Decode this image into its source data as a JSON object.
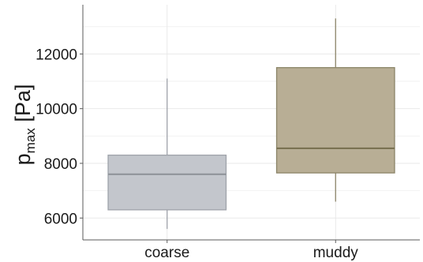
{
  "chart_data": {
    "type": "box",
    "title": "",
    "xlabel": "",
    "ylabel": {
      "main": "p",
      "subscript": "max",
      "unit": " [Pa]"
    },
    "ylim": [
      5200,
      13800
    ],
    "yticks": [
      6000,
      8000,
      10000,
      12000
    ],
    "ytick_labels": [
      "6000",
      "8000",
      "10000",
      "12000"
    ],
    "grid": true,
    "categories": [
      "coarse",
      "muddy"
    ],
    "boxes": [
      {
        "category": "coarse",
        "whisker_low": 5600,
        "q1": 6300,
        "median": 7600,
        "q3": 8300,
        "whisker_high": 11100,
        "fill": "#c3c6cc",
        "stroke": "#9fa3aa"
      },
      {
        "category": "muddy",
        "whisker_low": 6600,
        "q1": 7650,
        "median": 8550,
        "q3": 11500,
        "whisker_high": 13300,
        "fill": "#b8ae95",
        "stroke": "#8b8468"
      }
    ],
    "colors": {
      "grid": "#e9e9e9",
      "axis": "#5a5a5a",
      "text": "#1a1a1a",
      "median_coarse": "#8f939a",
      "median_muddy": "#7a7252"
    }
  }
}
